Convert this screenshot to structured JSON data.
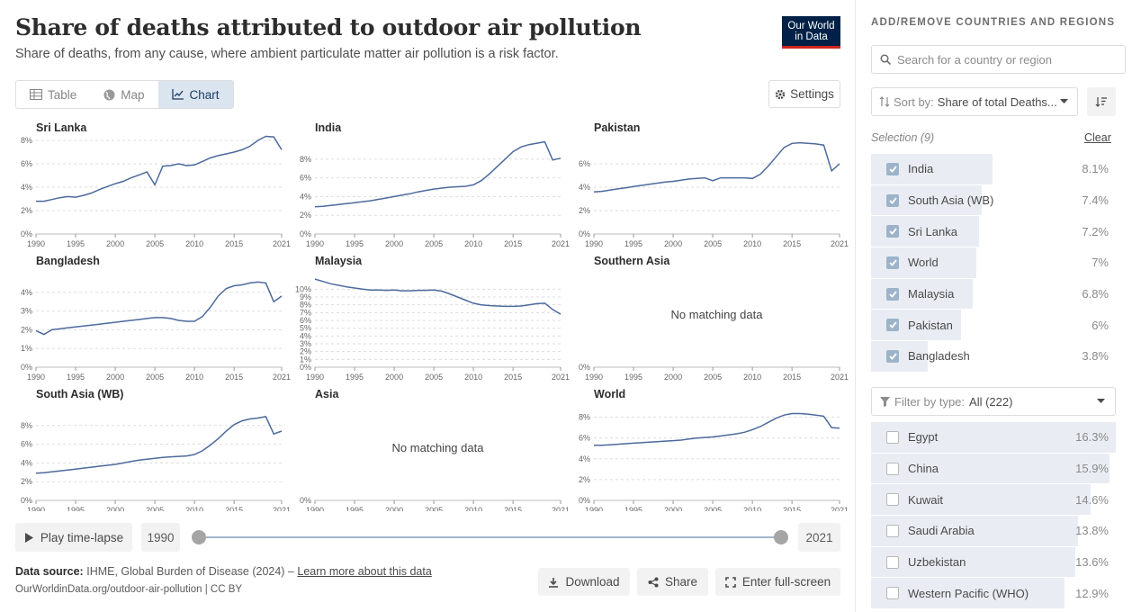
{
  "header": {
    "title": "Share of deaths attributed to outdoor air pollution",
    "subtitle": "Share of deaths, from any cause, where ambient particulate matter air pollution is a risk factor.",
    "logo_line1": "Our World",
    "logo_line2": "in Data"
  },
  "tabs": [
    {
      "label": "Table",
      "icon": "table-icon"
    },
    {
      "label": "Map",
      "icon": "globe-icon"
    },
    {
      "label": "Chart",
      "icon": "line-chart-icon",
      "active": true
    }
  ],
  "settings_label": "Settings",
  "no_data_label": "No matching data",
  "chart_data": [
    {
      "type": "line",
      "title": "Sri Lanka",
      "x": [
        1990,
        1991,
        1992,
        1993,
        1994,
        1995,
        1996,
        1997,
        1998,
        1999,
        2000,
        2001,
        2002,
        2003,
        2004,
        2005,
        2006,
        2007,
        2008,
        2009,
        2010,
        2011,
        2012,
        2013,
        2014,
        2015,
        2016,
        2017,
        2018,
        2019,
        2020,
        2021
      ],
      "y": [
        2.8,
        2.8,
        2.95,
        3.1,
        3.2,
        3.15,
        3.3,
        3.5,
        3.8,
        4.05,
        4.3,
        4.5,
        4.8,
        5.05,
        5.3,
        4.2,
        5.8,
        5.85,
        6.0,
        5.85,
        5.9,
        6.2,
        6.5,
        6.7,
        6.85,
        7.0,
        7.2,
        7.5,
        8.0,
        8.35,
        8.3,
        7.2
      ],
      "ylim": [
        0,
        8
      ],
      "yticks": [
        "0%",
        "2%",
        "4%",
        "6%",
        "8%"
      ]
    },
    {
      "type": "line",
      "title": "India",
      "x": [
        1990,
        1991,
        1992,
        1993,
        1994,
        1995,
        1996,
        1997,
        1998,
        1999,
        2000,
        2001,
        2002,
        2003,
        2004,
        2005,
        2006,
        2007,
        2008,
        2009,
        2010,
        2011,
        2012,
        2013,
        2014,
        2015,
        2016,
        2017,
        2018,
        2019,
        2020,
        2021
      ],
      "y": [
        2.9,
        2.95,
        3.05,
        3.15,
        3.25,
        3.35,
        3.45,
        3.55,
        3.7,
        3.85,
        4.0,
        4.15,
        4.3,
        4.5,
        4.65,
        4.8,
        4.9,
        5.0,
        5.05,
        5.1,
        5.25,
        5.7,
        6.4,
        7.2,
        8.0,
        8.8,
        9.3,
        9.55,
        9.7,
        9.85,
        7.9,
        8.1
      ],
      "ylim": [
        0,
        10
      ],
      "yticks": [
        "0%",
        "2%",
        "4%",
        "6%",
        "8%"
      ]
    },
    {
      "type": "line",
      "title": "Pakistan",
      "x": [
        1990,
        1991,
        1992,
        1993,
        1994,
        1995,
        1996,
        1997,
        1998,
        1999,
        2000,
        2001,
        2002,
        2003,
        2004,
        2005,
        2006,
        2007,
        2008,
        2009,
        2010,
        2011,
        2012,
        2013,
        2014,
        2015,
        2016,
        2017,
        2018,
        2019,
        2020,
        2021
      ],
      "y": [
        3.6,
        3.65,
        3.75,
        3.85,
        3.95,
        4.05,
        4.15,
        4.25,
        4.35,
        4.45,
        4.5,
        4.6,
        4.7,
        4.75,
        4.8,
        4.55,
        4.8,
        4.8,
        4.8,
        4.8,
        4.75,
        5.1,
        5.8,
        6.6,
        7.4,
        7.75,
        7.8,
        7.75,
        7.7,
        7.6,
        5.4,
        6.0
      ],
      "ylim": [
        0,
        8
      ],
      "yticks": [
        "0%",
        "2%",
        "4%",
        "6%"
      ]
    },
    {
      "type": "line",
      "title": "Bangladesh",
      "x": [
        1990,
        1991,
        1992,
        1993,
        1994,
        1995,
        1996,
        1997,
        1998,
        1999,
        2000,
        2001,
        2002,
        2003,
        2004,
        2005,
        2006,
        2007,
        2008,
        2009,
        2010,
        2011,
        2012,
        2013,
        2014,
        2015,
        2016,
        2017,
        2018,
        2019,
        2020,
        2021
      ],
      "y": [
        1.95,
        1.75,
        2.0,
        2.05,
        2.1,
        2.15,
        2.2,
        2.25,
        2.3,
        2.35,
        2.4,
        2.45,
        2.5,
        2.55,
        2.6,
        2.65,
        2.65,
        2.6,
        2.5,
        2.45,
        2.45,
        2.7,
        3.2,
        3.8,
        4.2,
        4.35,
        4.4,
        4.5,
        4.55,
        4.5,
        3.5,
        3.8
      ],
      "ylim": [
        0,
        5
      ],
      "yticks": [
        "0%",
        "1%",
        "2%",
        "3%",
        "4%"
      ]
    },
    {
      "type": "line",
      "title": "Malaysia",
      "x": [
        1990,
        1991,
        1992,
        1993,
        1994,
        1995,
        1996,
        1997,
        1998,
        1999,
        2000,
        2001,
        2002,
        2003,
        2004,
        2005,
        2006,
        2007,
        2008,
        2009,
        2010,
        2011,
        2012,
        2013,
        2014,
        2015,
        2016,
        2017,
        2018,
        2019,
        2020,
        2021
      ],
      "y": [
        11.3,
        11.0,
        10.7,
        10.5,
        10.3,
        10.15,
        10.0,
        9.9,
        9.9,
        9.85,
        9.9,
        9.8,
        9.8,
        9.85,
        9.85,
        9.9,
        9.75,
        9.4,
        9.0,
        8.6,
        8.2,
        8.0,
        7.9,
        7.85,
        7.8,
        7.8,
        7.85,
        8.0,
        8.15,
        8.2,
        7.4,
        6.8
      ],
      "ylim": [
        0,
        12
      ],
      "yticks": [
        "0%",
        "1%",
        "2%",
        "3%",
        "4%",
        "5%",
        "6%",
        "7%",
        "8%",
        "9%",
        "10%"
      ]
    },
    {
      "type": "line",
      "title": "Southern Asia",
      "no_data": true,
      "yticks": [
        "0%"
      ]
    },
    {
      "type": "line",
      "title": "South Asia (WB)",
      "x": [
        1990,
        1991,
        1992,
        1993,
        1994,
        1995,
        1996,
        1997,
        1998,
        1999,
        2000,
        2001,
        2002,
        2003,
        2004,
        2005,
        2006,
        2007,
        2008,
        2009,
        2010,
        2011,
        2012,
        2013,
        2014,
        2015,
        2016,
        2017,
        2018,
        2019,
        2020,
        2021
      ],
      "y": [
        2.9,
        2.95,
        3.05,
        3.15,
        3.25,
        3.35,
        3.45,
        3.55,
        3.65,
        3.75,
        3.85,
        4.0,
        4.15,
        4.3,
        4.4,
        4.5,
        4.6,
        4.65,
        4.7,
        4.75,
        4.9,
        5.3,
        5.9,
        6.6,
        7.4,
        8.1,
        8.5,
        8.7,
        8.8,
        8.95,
        7.1,
        7.4
      ],
      "ylim": [
        0,
        10
      ],
      "yticks": [
        "0%",
        "2%",
        "4%",
        "6%",
        "8%"
      ]
    },
    {
      "type": "line",
      "title": "Asia",
      "no_data": true,
      "yticks": [
        "0%"
      ]
    },
    {
      "type": "line",
      "title": "World",
      "x": [
        1990,
        1991,
        1992,
        1993,
        1994,
        1995,
        1996,
        1997,
        1998,
        1999,
        2000,
        2001,
        2002,
        2003,
        2004,
        2005,
        2006,
        2007,
        2008,
        2009,
        2010,
        2011,
        2012,
        2013,
        2014,
        2015,
        2016,
        2017,
        2018,
        2019,
        2020,
        2021
      ],
      "y": [
        5.3,
        5.3,
        5.35,
        5.4,
        5.45,
        5.5,
        5.55,
        5.6,
        5.65,
        5.7,
        5.75,
        5.8,
        5.9,
        6.0,
        6.05,
        6.1,
        6.2,
        6.3,
        6.4,
        6.55,
        6.8,
        7.1,
        7.5,
        7.9,
        8.2,
        8.35,
        8.35,
        8.3,
        8.2,
        8.1,
        7.0,
        6.95
      ],
      "ylim": [
        0,
        9
      ],
      "yticks": [
        "0%",
        "2%",
        "4%",
        "6%",
        "8%"
      ]
    }
  ],
  "x_ticks": [
    "1990",
    "1995",
    "2000",
    "2005",
    "2010",
    "2015",
    "2021"
  ],
  "timeline": {
    "play_label": "Play time-lapse",
    "start_year": "1990",
    "end_year": "2021"
  },
  "footer": {
    "source_label": "Data source:",
    "source_text": "IHME, Global Burden of Disease (2024) –",
    "learn_more": "Learn more about this data",
    "url": "OurWorldinData.org/outdoor-air-pollution | CC BY",
    "download": "Download",
    "share": "Share",
    "fullscreen": "Enter full-screen"
  },
  "sidebar": {
    "heading": "ADD/REMOVE COUNTRIES AND REGIONS",
    "search_placeholder": "Search for a country or region",
    "sort_label": "Sort by:",
    "sort_value": "Share of total Deaths...",
    "selection_label": "Selection (9)",
    "clear_label": "Clear",
    "selected": [
      {
        "name": "India",
        "value": "8.1%",
        "fraction": 0.496
      },
      {
        "name": "South Asia (WB)",
        "value": "7.4%",
        "fraction": 0.454
      },
      {
        "name": "Sri Lanka",
        "value": "7.2%",
        "fraction": 0.442
      },
      {
        "name": "World",
        "value": "7%",
        "fraction": 0.429
      },
      {
        "name": "Malaysia",
        "value": "6.8%",
        "fraction": 0.417
      },
      {
        "name": "Pakistan",
        "value": "6%",
        "fraction": 0.368
      },
      {
        "name": "Bangladesh",
        "value": "3.8%",
        "fraction": 0.233
      }
    ],
    "filter_label": "Filter by type:",
    "filter_value": "All (222)",
    "others": [
      {
        "name": "Egypt",
        "value": "16.3%",
        "fraction": 1.0
      },
      {
        "name": "China",
        "value": "15.9%",
        "fraction": 0.975
      },
      {
        "name": "Kuwait",
        "value": "14.6%",
        "fraction": 0.896
      },
      {
        "name": "Saudi Arabia",
        "value": "13.8%",
        "fraction": 0.847
      },
      {
        "name": "Uzbekistan",
        "value": "13.6%",
        "fraction": 0.834
      },
      {
        "name": "Western Pacific (WHO)",
        "value": "12.9%",
        "fraction": 0.791
      }
    ]
  },
  "colors": {
    "line": "#4c6a9c",
    "accent": "#1d3d63",
    "logo_bg": "#002147",
    "logo_red": "#ce261e"
  }
}
